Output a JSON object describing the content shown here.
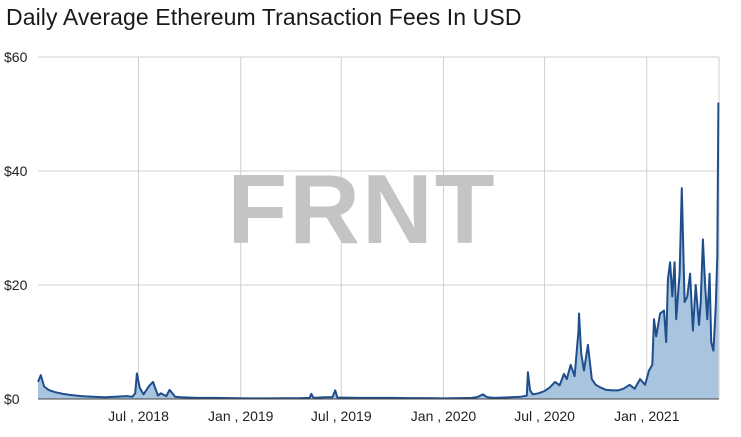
{
  "chart_data": {
    "type": "area",
    "title": "Daily Average Ethereum Transaction Fees In USD",
    "xlabel": "",
    "ylabel": "",
    "ylim": [
      0,
      60
    ],
    "xlim": [
      "2018-01-01",
      "2021-05-11"
    ],
    "grid": true,
    "fill_color": "#a9c4de",
    "line_color": "#1f4e8c",
    "watermark": "FRNT",
    "y_ticks": [
      {
        "value": 0,
        "label": "$0"
      },
      {
        "value": 20,
        "label": "$20"
      },
      {
        "value": 40,
        "label": "$40"
      },
      {
        "value": 60,
        "label": "$60"
      }
    ],
    "x_ticks": [
      {
        "date": "2018-07-01",
        "label": "Jul , 2018"
      },
      {
        "date": "2019-01-01",
        "label": "Jan , 2019"
      },
      {
        "date": "2019-07-01",
        "label": "Jul , 2019"
      },
      {
        "date": "2020-01-01",
        "label": "Jan , 2020"
      },
      {
        "date": "2020-07-01",
        "label": "Jul , 2020"
      },
      {
        "date": "2021-01-01",
        "label": "Jan , 2021"
      }
    ],
    "series": [
      {
        "x": [
          "2018-01-01",
          "2018-01-06",
          "2018-01-12",
          "2018-01-20",
          "2018-02-01",
          "2018-02-15",
          "2018-03-01",
          "2018-03-20",
          "2018-04-10",
          "2018-05-01",
          "2018-05-20",
          "2018-06-10",
          "2018-06-20",
          "2018-06-25",
          "2018-06-28",
          "2018-07-03",
          "2018-07-10",
          "2018-07-20",
          "2018-07-27",
          "2018-08-05",
          "2018-08-10",
          "2018-08-20",
          "2018-08-26",
          "2018-09-05",
          "2018-09-15",
          "2018-10-15",
          "2018-11-15",
          "2018-12-15",
          "2019-01-15",
          "2019-02-15",
          "2019-03-15",
          "2019-04-15",
          "2019-05-05",
          "2019-05-08",
          "2019-05-12",
          "2019-05-20",
          "2019-06-01",
          "2019-06-15",
          "2019-06-20",
          "2019-06-24",
          "2019-07-05",
          "2019-08-01",
          "2019-09-01",
          "2019-10-01",
          "2019-11-01",
          "2019-12-01",
          "2020-01-01",
          "2020-02-01",
          "2020-02-20",
          "2020-03-01",
          "2020-03-12",
          "2020-03-20",
          "2020-04-01",
          "2020-05-01",
          "2020-05-20",
          "2020-05-30",
          "2020-06-01",
          "2020-06-05",
          "2020-06-10",
          "2020-06-20",
          "2020-07-01",
          "2020-07-10",
          "2020-07-20",
          "2020-07-28",
          "2020-08-05",
          "2020-08-10",
          "2020-08-17",
          "2020-08-24",
          "2020-08-31",
          "2020-09-01",
          "2020-09-05",
          "2020-09-10",
          "2020-09-17",
          "2020-09-24",
          "2020-10-01",
          "2020-10-10",
          "2020-10-20",
          "2020-11-01",
          "2020-11-10",
          "2020-11-20",
          "2020-12-01",
          "2020-12-10",
          "2020-12-20",
          "2020-12-29",
          "2021-01-05",
          "2021-01-11",
          "2021-01-14",
          "2021-01-18",
          "2021-01-25",
          "2021-02-01",
          "2021-02-05",
          "2021-02-08",
          "2021-02-12",
          "2021-02-16",
          "2021-02-20",
          "2021-02-23",
          "2021-03-01",
          "2021-03-05",
          "2021-03-10",
          "2021-03-15",
          "2021-03-20",
          "2021-03-25",
          "2021-03-30",
          "2021-04-05",
          "2021-04-08",
          "2021-04-12",
          "2021-04-16",
          "2021-04-20",
          "2021-04-24",
          "2021-04-27",
          "2021-05-01",
          "2021-05-05",
          "2021-05-08",
          "2021-05-10"
        ],
        "y": [
          3.0,
          4.2,
          2.2,
          1.6,
          1.2,
          0.9,
          0.7,
          0.5,
          0.4,
          0.3,
          0.4,
          0.5,
          0.4,
          1.0,
          4.5,
          2.0,
          0.8,
          2.3,
          3.0,
          0.6,
          1.0,
          0.5,
          1.6,
          0.4,
          0.3,
          0.2,
          0.2,
          0.15,
          0.1,
          0.1,
          0.12,
          0.12,
          0.2,
          0.9,
          0.2,
          0.25,
          0.3,
          0.3,
          1.5,
          0.25,
          0.25,
          0.2,
          0.2,
          0.2,
          0.15,
          0.15,
          0.1,
          0.15,
          0.2,
          0.3,
          0.8,
          0.3,
          0.2,
          0.3,
          0.4,
          0.6,
          4.7,
          1.5,
          0.8,
          1.0,
          1.4,
          2.0,
          3.0,
          2.4,
          4.4,
          3.5,
          6.0,
          4.0,
          12.0,
          15.0,
          8.0,
          5.0,
          9.5,
          3.5,
          2.5,
          2.0,
          1.6,
          1.5,
          1.5,
          1.8,
          2.5,
          1.8,
          3.5,
          2.5,
          5.0,
          6.0,
          14.0,
          11.0,
          15.0,
          15.5,
          10.0,
          21.0,
          24.0,
          18.0,
          24.0,
          14.0,
          22.0,
          37.0,
          17.0,
          18.0,
          22.0,
          12.0,
          20.0,
          13.0,
          17.0,
          28.0,
          20.0,
          14.0,
          22.0,
          10.0,
          8.5,
          16.0,
          25.0,
          52.0
        ]
      }
    ]
  }
}
